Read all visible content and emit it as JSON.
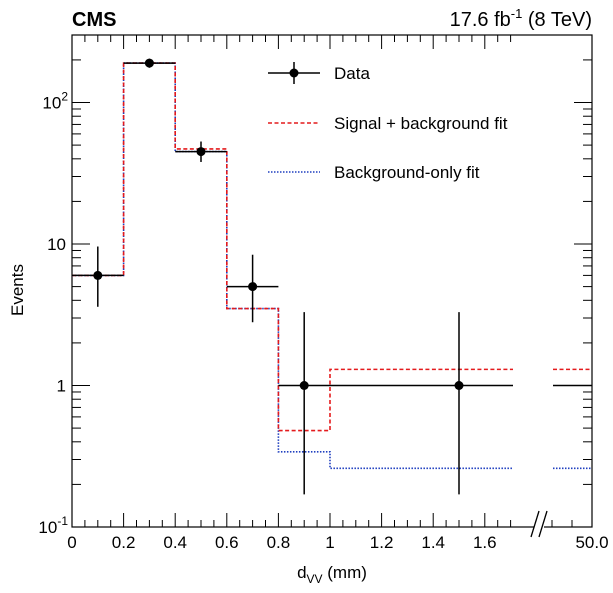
{
  "header": {
    "experiment": "CMS",
    "lumi_value": "17.6 fb",
    "lumi_exp": "-1",
    "lumi_energy": " (8 TeV)"
  },
  "chart_data": {
    "type": "histogram",
    "xlabel_main": "d",
    "xlabel_sub": "VV",
    "xlabel_unit": " (mm)",
    "ylabel": "Events",
    "y_scale": "log",
    "ylim": [
      0.1,
      300
    ],
    "x_axis_break": true,
    "bin_edges": [
      0,
      0.2,
      0.4,
      0.6,
      0.8,
      1.0,
      50.0
    ],
    "x_tick_labels": [
      "0",
      "0.2",
      "0.4",
      "0.6",
      "0.8",
      "1",
      "1.2",
      "1.4",
      "1.6",
      "50.0"
    ],
    "y_tick_labels": [
      {
        "value": 0.1,
        "base": "10",
        "exp": "-1"
      },
      {
        "value": 1,
        "base": "1",
        "exp": ""
      },
      {
        "value": 10,
        "base": "10",
        "exp": ""
      },
      {
        "value": 100,
        "base": "10",
        "exp": "2"
      }
    ],
    "series": [
      {
        "name": "Data",
        "kind": "points",
        "color": "#000000",
        "points": [
          {
            "x": 0.1,
            "y": 6,
            "err_low": 2.4,
            "err_high": 3.6
          },
          {
            "x": 0.3,
            "y": 190,
            "err_low": 14,
            "err_high": 14
          },
          {
            "x": 0.5,
            "y": 45,
            "err_low": 7,
            "err_high": 8
          },
          {
            "x": 0.7,
            "y": 5,
            "err_low": 2.2,
            "err_high": 3.4
          },
          {
            "x": 0.9,
            "y": 1,
            "err_low": 0.83,
            "err_high": 2.3
          },
          {
            "x": 1.5,
            "y": 1,
            "err_low": 0.83,
            "err_high": 2.3
          }
        ]
      },
      {
        "name": "Signal + background fit",
        "kind": "step",
        "color": "#e41a1c",
        "style": "dashed",
        "values": [
          6,
          190,
          47,
          3.5,
          0.48,
          1.3
        ]
      },
      {
        "name": "Background-only fit",
        "kind": "step",
        "color": "#1f3fbf",
        "style": "dotted",
        "values": [
          6,
          190,
          45,
          3.5,
          0.34,
          0.26
        ]
      }
    ],
    "legend_position": "top-right"
  }
}
